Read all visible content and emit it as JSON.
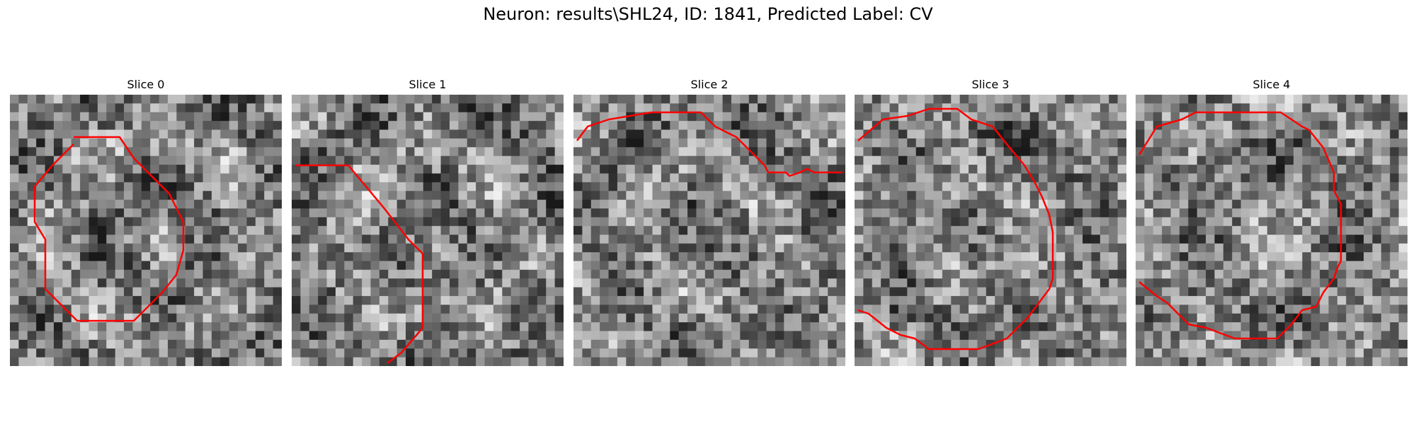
{
  "figure": {
    "title": "Neuron: results\\SHL24, ID: 1841, Predicted Label: CV"
  },
  "slices": [
    {
      "title": "Slice 0"
    },
    {
      "title": "Slice 1"
    },
    {
      "title": "Slice 2"
    },
    {
      "title": "Slice 3"
    },
    {
      "title": "Slice 4"
    }
  ],
  "colors": {
    "contour": "#ff0000",
    "grayscale_min": "#1a1a1a",
    "grayscale_max": "#f2f2f2"
  }
}
